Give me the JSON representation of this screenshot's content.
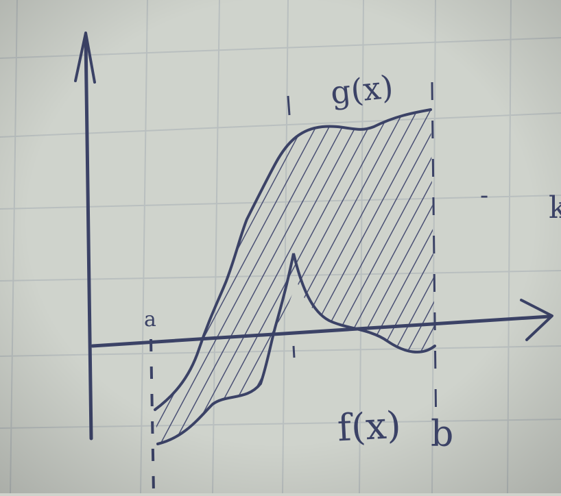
{
  "labels": {
    "g": "g(x)",
    "f": "f(x)",
    "a": "a",
    "b": "b",
    "edge_mark": "k",
    "dash_mark": "-"
  },
  "colors": {
    "paper": "#cfd3cc",
    "grid": "#b9bfbf",
    "ink": "#3b4266",
    "hatch": "#4a5074"
  },
  "icons": {
    "x_axis_arrow": "arrow-right-icon",
    "y_axis_arrow": "arrow-up-icon"
  }
}
